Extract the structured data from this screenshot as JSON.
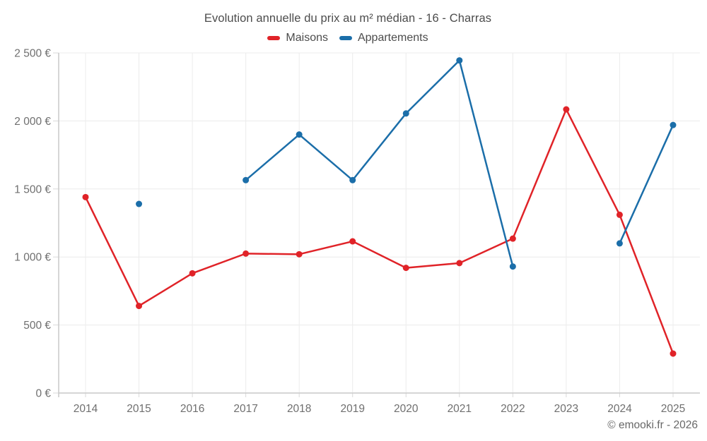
{
  "chart_data": {
    "type": "line",
    "title": "Evolution annuelle du prix au m² médian - 16 - Charras",
    "categories": [
      "2014",
      "2015",
      "2016",
      "2017",
      "2018",
      "2019",
      "2020",
      "2021",
      "2022",
      "2023",
      "2024",
      "2025"
    ],
    "series": [
      {
        "name": "Maisons",
        "color": "#e02328",
        "values": [
          1440,
          640,
          880,
          1025,
          1020,
          1115,
          920,
          955,
          1135,
          2085,
          1310,
          290
        ]
      },
      {
        "name": "Appartements",
        "color": "#1b6ea9",
        "values": [
          null,
          1390,
          null,
          1565,
          1900,
          1565,
          2055,
          2445,
          930,
          null,
          1100,
          1970
        ]
      }
    ],
    "ylim": [
      0,
      2500
    ],
    "y_tick_step": 500,
    "y_tick_suffix": " €",
    "y_tick_labels": [
      "0 €",
      "500 €",
      "1 000 €",
      "1 500 €",
      "2 000 €",
      "2 500 €"
    ],
    "grid": true,
    "legend_position": "top",
    "grid_color": "#ececec",
    "axis_color": "#c9c9c9"
  },
  "attribution": "© emooki.fr - 2026"
}
